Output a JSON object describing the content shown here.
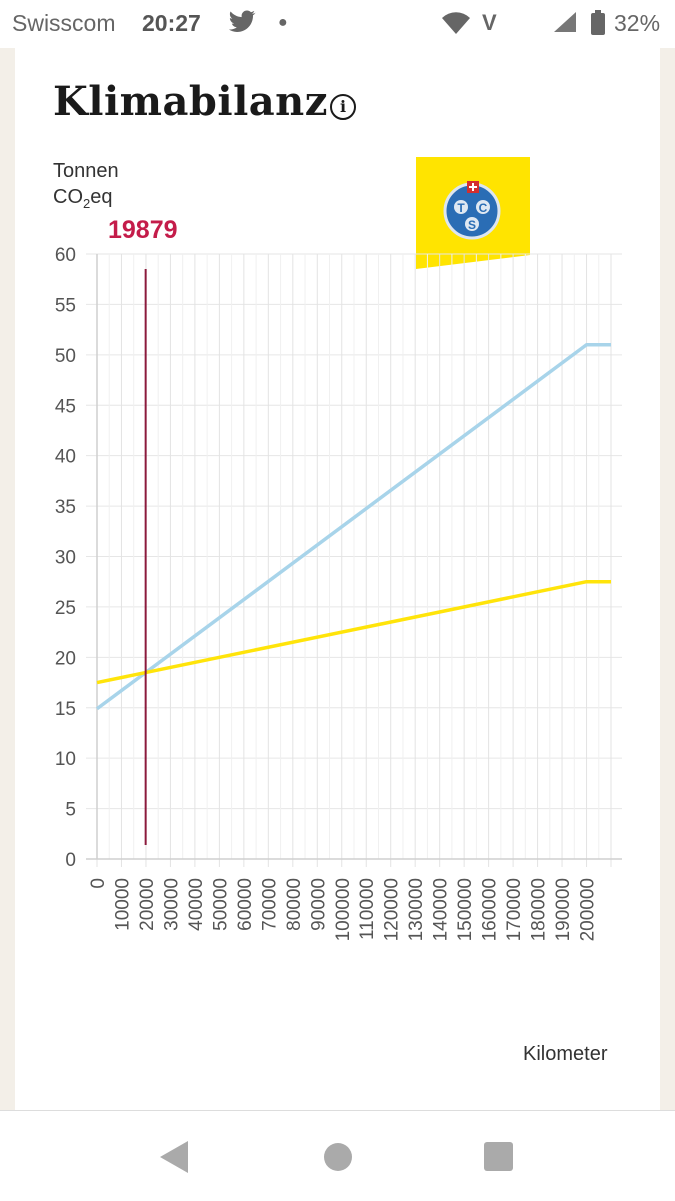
{
  "status": {
    "carrier": "Swisscom",
    "time": "20:27",
    "battery": "32%",
    "icons": [
      "twitter-icon",
      "dot-icon",
      "wifi-icon",
      "volte-icon",
      "signal-icon",
      "battery-icon"
    ]
  },
  "page": {
    "title": "Klimabilanz",
    "unit_line1": "Tonnen",
    "unit_line2_prefix": "CO",
    "unit_line2_sub": "2",
    "unit_line2_suffix": "eq",
    "marker_value": "19879",
    "x_axis_label": "Kilometer",
    "logo_letters": [
      "T",
      "C",
      "S"
    ]
  },
  "chart_data": {
    "type": "line",
    "ylim": [
      0,
      60
    ],
    "y_ticks": [
      0,
      5,
      10,
      15,
      20,
      25,
      30,
      35,
      40,
      45,
      50,
      55,
      60
    ],
    "x_ticks": [
      0,
      10000,
      20000,
      30000,
      40000,
      50000,
      60000,
      70000,
      80000,
      90000,
      100000,
      110000,
      120000,
      130000,
      140000,
      150000,
      160000,
      170000,
      180000,
      190000,
      200000
    ],
    "x_range": [
      0,
      210000
    ],
    "marker_x": 19879,
    "series": [
      {
        "color": "#a8d4ea",
        "x": [
          0,
          200000,
          210000
        ],
        "y": [
          14.9,
          51,
          51
        ]
      },
      {
        "color": "#ffe40a",
        "x": [
          0,
          200000,
          210000
        ],
        "y": [
          17.5,
          27.5,
          27.5
        ]
      }
    ],
    "marker_color": "#8b1a3c",
    "grid": true
  },
  "colors": {
    "accent": "#c41c4a",
    "tcs_yellow": "#ffe400",
    "tcs_blue": "#2a6db5"
  }
}
